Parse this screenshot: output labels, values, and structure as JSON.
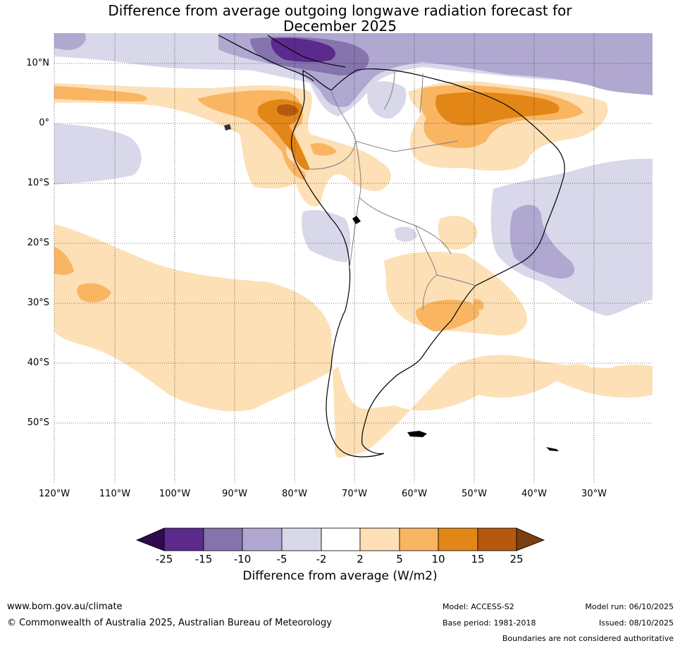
{
  "title": {
    "line1": "Difference from average outgoing longwave radiation forecast for",
    "line2": "December 2025"
  },
  "map": {
    "lat_ticks": [
      "10°N",
      "0°",
      "10°S",
      "20°S",
      "30°S",
      "40°S",
      "50°S"
    ],
    "lon_ticks": [
      "120°W",
      "110°W",
      "100°W",
      "90°W",
      "80°W",
      "70°W",
      "60°W",
      "50°W",
      "40°W",
      "30°W"
    ]
  },
  "colorbar": {
    "labels": [
      "-25",
      "-15",
      "-10",
      "-5",
      "-2",
      "2",
      "5",
      "10",
      "15",
      "25"
    ],
    "colors": [
      "#2d0b4e",
      "#5b2a8c",
      "#8574ae",
      "#b0a8d1",
      "#d8d8ea",
      "#ffffff",
      "#fde0b6",
      "#f9b562",
      "#e38618",
      "#b5590f",
      "#7a3f0e"
    ],
    "title": "Difference from average (W/m2)"
  },
  "footer": {
    "website": "www.bom.gov.au/climate",
    "copyright": "© Commonwealth of Australia 2025, Australian Bureau of Meteorology",
    "model": "Model: ACCESS-S2",
    "base_period": "Base period: 1981-2018",
    "model_run": "Model run: 06/10/2025",
    "issued": "Issued: 08/10/2025",
    "disclaimer": "Boundaries are not considered authoritative"
  }
}
